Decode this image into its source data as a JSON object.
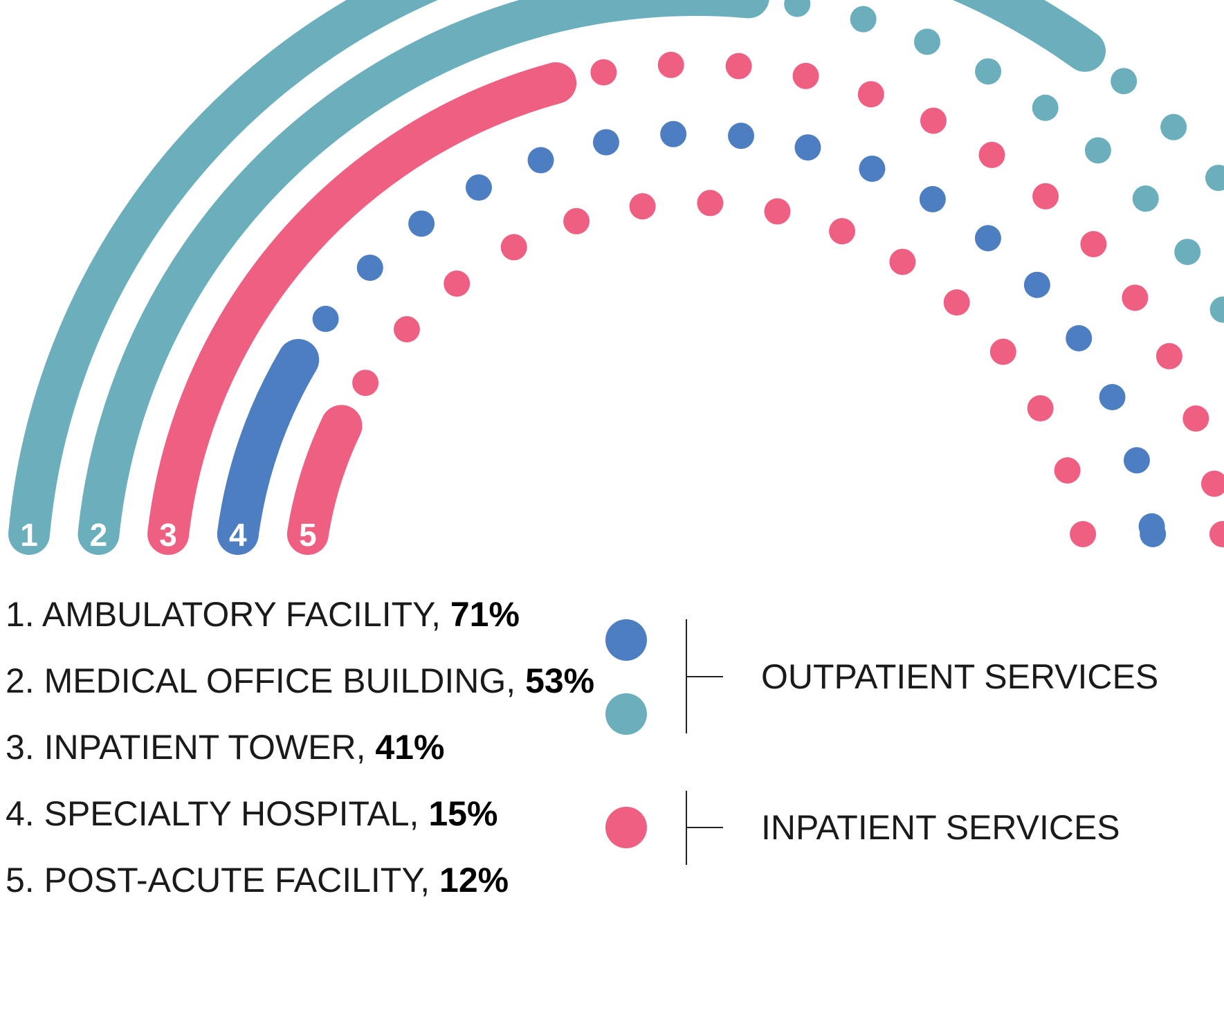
{
  "colors": {
    "teal": "#6aafbb",
    "pink": "#ef5f82",
    "blue": "#4d7ec2",
    "text": "#1a1a1a",
    "bracket": "#222222"
  },
  "chart_data": {
    "type": "radial-bar",
    "title": "",
    "series": [
      {
        "number": "1",
        "label": "1. AMBULATORY FACILITY, ",
        "value": 71,
        "value_label": "71%",
        "color_key": "teal",
        "service": "outpatient"
      },
      {
        "number": "2",
        "label": "2. MEDICAL OFFICE BUILDING, ",
        "value": 53,
        "value_label": "53%",
        "color_key": "teal",
        "service": "outpatient"
      },
      {
        "number": "3",
        "label": "3. INPATIENT TOWER, ",
        "value": 41,
        "value_label": "41%",
        "color_key": "pink",
        "service": "inpatient"
      },
      {
        "number": "4",
        "label": "4. SPECIALTY HOSPITAL, ",
        "value": 15,
        "value_label": "15%",
        "color_key": "blue",
        "service": "outpatient"
      },
      {
        "number": "5",
        "label": "5. POST-ACUTE FACILITY, ",
        "value": 12,
        "value_label": "12%",
        "color_key": "pink",
        "service": "inpatient"
      }
    ],
    "value_range": [
      0,
      100
    ],
    "remainder_marks": "dots",
    "legend": {
      "placement": "bottom-right",
      "groups": [
        {
          "label": "OUTPATIENT SERVICES",
          "color_keys": [
            "blue",
            "teal"
          ]
        },
        {
          "label": "INPATIENT SERVICES",
          "color_keys": [
            "pink"
          ]
        }
      ]
    }
  }
}
